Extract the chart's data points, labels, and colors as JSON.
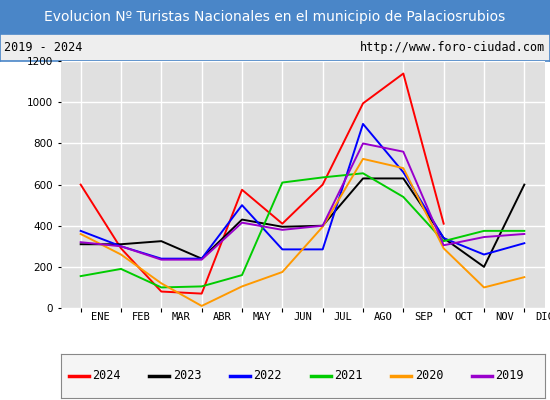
{
  "title": "Evolucion Nº Turistas Nacionales en el municipio de Palaciosrubios",
  "subtitle_left": "2019 - 2024",
  "subtitle_right": "http://www.foro-ciudad.com",
  "months": [
    "ENE",
    "FEB",
    "MAR",
    "ABR",
    "MAY",
    "JUN",
    "JUL",
    "AGO",
    "SEP",
    "OCT",
    "NOV",
    "DIC"
  ],
  "ylim": [
    0,
    1200
  ],
  "yticks": [
    0,
    200,
    400,
    600,
    800,
    1000,
    1200
  ],
  "series": {
    "2024": {
      "color": "#ff0000",
      "values": [
        600,
        290,
        80,
        70,
        575,
        410,
        600,
        995,
        1140,
        410,
        null,
        null
      ]
    },
    "2023": {
      "color": "#000000",
      "values": [
        310,
        310,
        325,
        240,
        430,
        395,
        400,
        630,
        630,
        340,
        200,
        600
      ]
    },
    "2022": {
      "color": "#0000ff",
      "values": [
        375,
        300,
        240,
        240,
        500,
        285,
        285,
        895,
        660,
        340,
        260,
        315
      ]
    },
    "2021": {
      "color": "#00cc00",
      "values": [
        155,
        190,
        100,
        105,
        160,
        610,
        635,
        655,
        540,
        325,
        375,
        375
      ]
    },
    "2020": {
      "color": "#ff9900",
      "values": [
        360,
        260,
        120,
        10,
        105,
        175,
        395,
        725,
        680,
        290,
        100,
        150
      ]
    },
    "2019": {
      "color": "#9900cc",
      "values": [
        320,
        300,
        235,
        235,
        415,
        380,
        400,
        800,
        760,
        305,
        345,
        360
      ]
    }
  },
  "legend_order": [
    "2024",
    "2023",
    "2022",
    "2021",
    "2020",
    "2019"
  ],
  "title_bg_color": "#4a86c8",
  "title_text_color": "#ffffff",
  "subtitle_bg_color": "#eeeeee",
  "plot_bg_color": "#e0e0e0",
  "grid_color": "#ffffff",
  "border_color": "#4a86c8",
  "title_fontsize": 10,
  "subtitle_fontsize": 8.5,
  "tick_fontsize": 7.5,
  "legend_fontsize": 8.5
}
